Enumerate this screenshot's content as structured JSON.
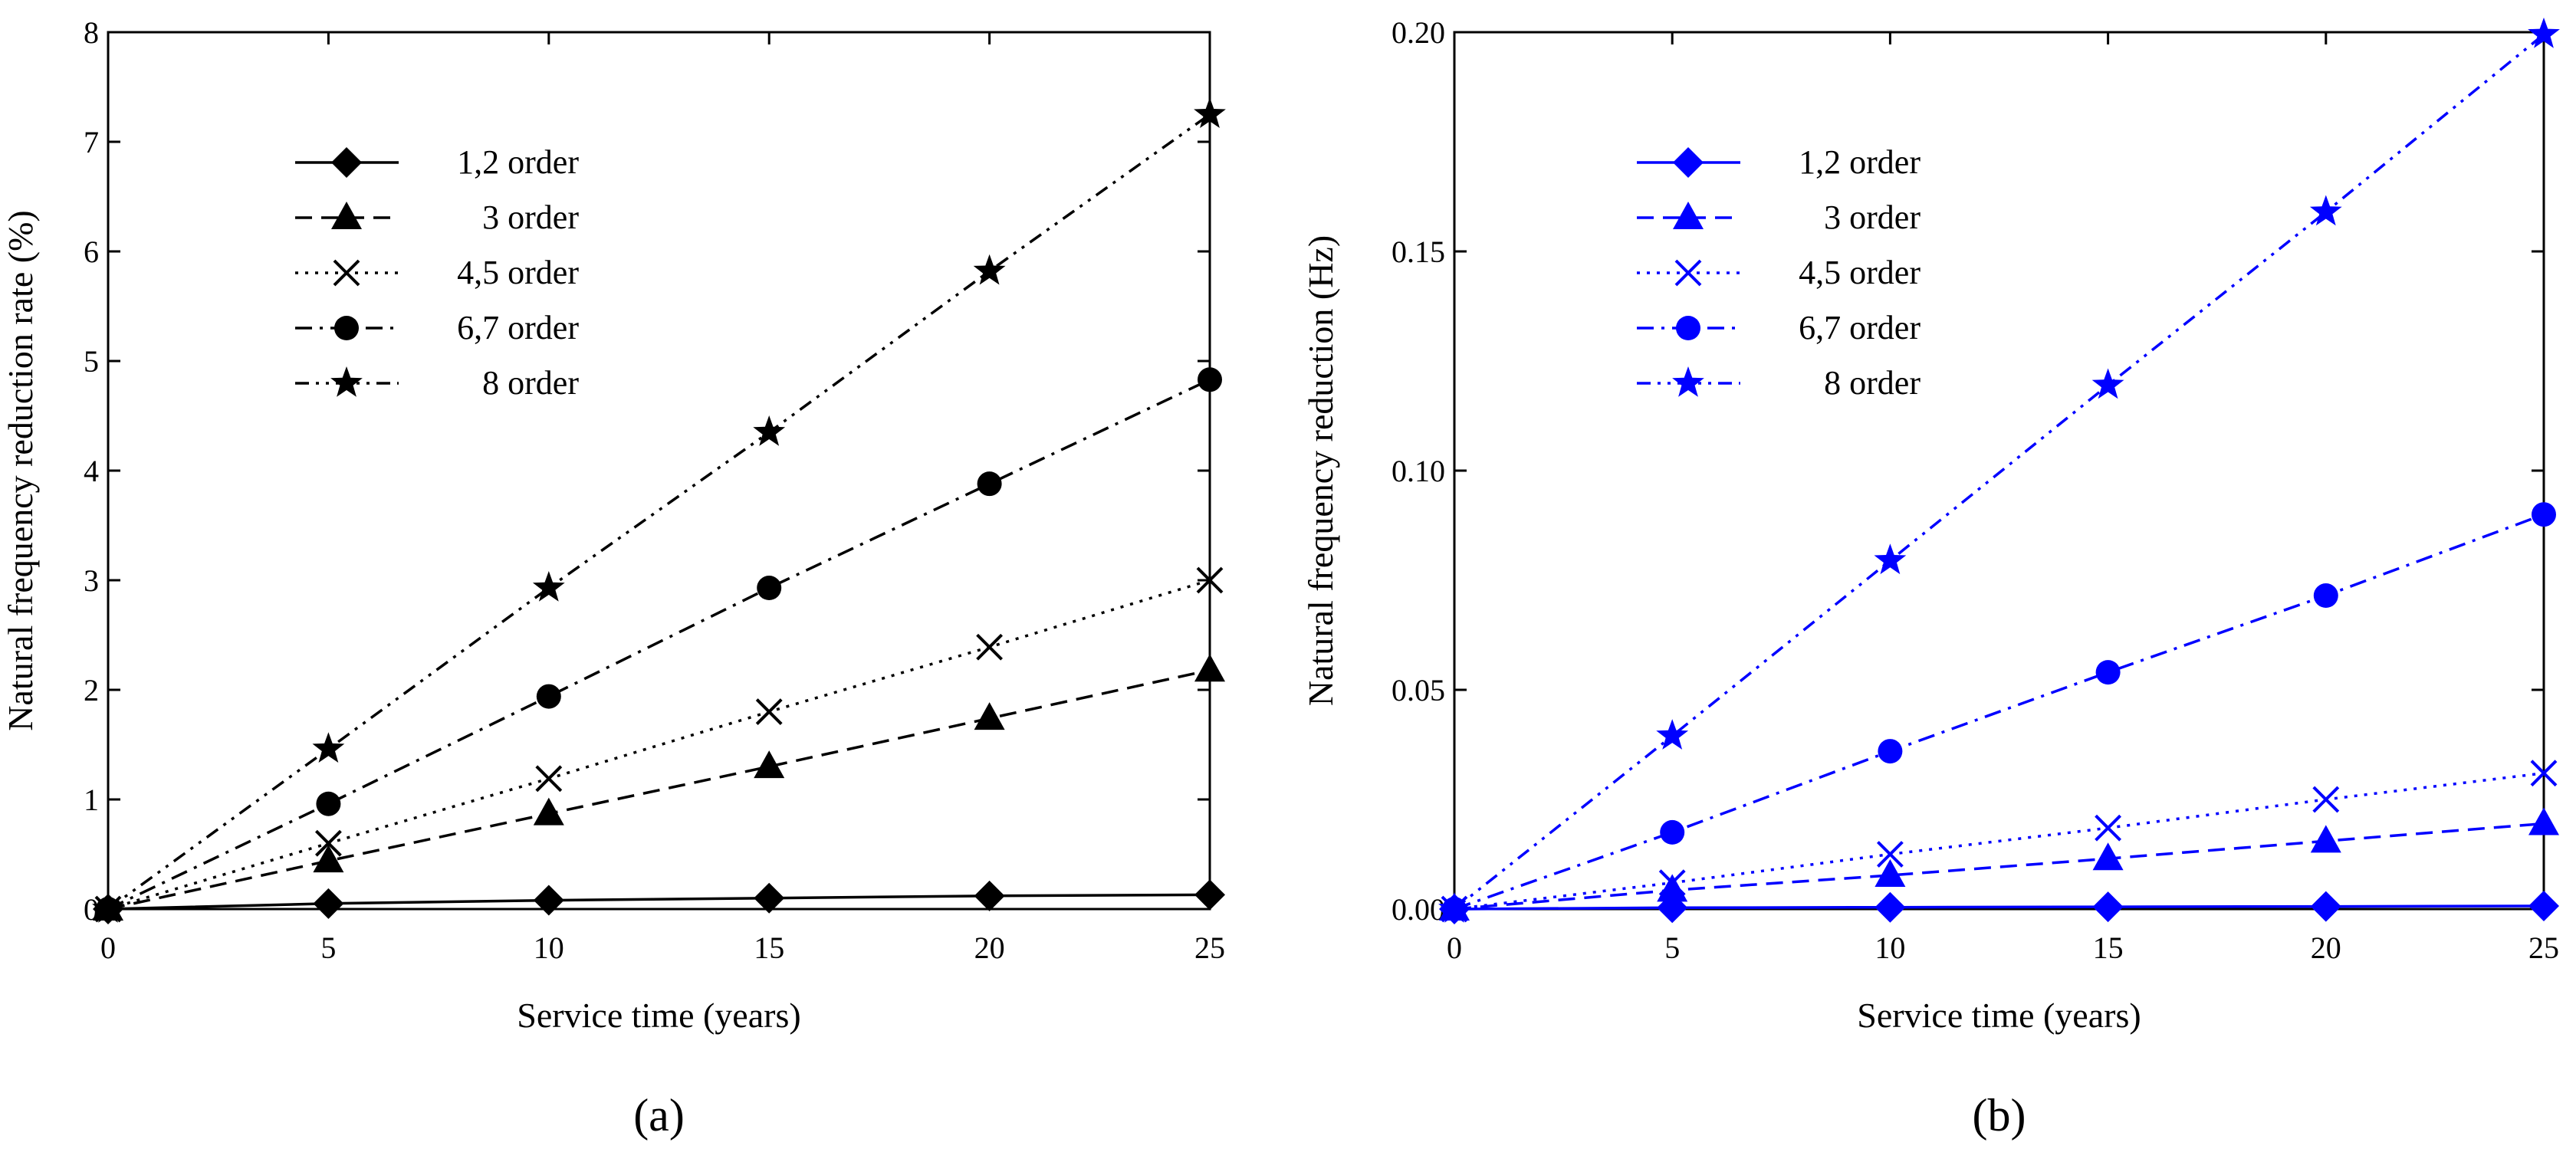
{
  "chart_data": [
    {
      "type": "line",
      "panel_label": "(a)",
      "xlabel": "Service time (years)",
      "ylabel": "Natural frequency reduction rate (%)",
      "color": "#000000",
      "x": [
        0,
        5,
        10,
        15,
        20,
        25
      ],
      "xlim": [
        0,
        25
      ],
      "ylim": [
        0,
        8
      ],
      "xticks": [
        0,
        5,
        10,
        15,
        20,
        25
      ],
      "yticks": [
        0,
        1,
        2,
        3,
        4,
        5,
        6,
        7,
        8
      ],
      "ytick_labels": [
        "0",
        "1",
        "2",
        "3",
        "4",
        "5",
        "6",
        "7",
        "8"
      ],
      "legend_position": "top-left",
      "series": [
        {
          "name": "1,2 order",
          "marker": "diamond",
          "dash": "solid",
          "values": [
            0,
            0.05,
            0.08,
            0.1,
            0.12,
            0.13
          ]
        },
        {
          "name": "3 order",
          "marker": "triangle",
          "dash": "dashed",
          "values": [
            0,
            0.44,
            0.87,
            1.3,
            1.74,
            2.18
          ]
        },
        {
          "name": "4,5 order",
          "marker": "x",
          "dash": "dotted",
          "values": [
            0,
            0.6,
            1.19,
            1.8,
            2.39,
            3.0
          ]
        },
        {
          "name": "6,7 order",
          "marker": "circle",
          "dash": "dashdot",
          "values": [
            0,
            0.96,
            1.94,
            2.93,
            3.88,
            4.83
          ]
        },
        {
          "name": "8 order",
          "marker": "star",
          "dash": "dashdotdot",
          "values": [
            0,
            1.46,
            2.93,
            4.35,
            5.82,
            7.25
          ]
        }
      ]
    },
    {
      "type": "line",
      "panel_label": "(b)",
      "xlabel": "Service time (years)",
      "ylabel": "Natural frequency reduction (Hz)",
      "color": "#0000ff",
      "x": [
        0,
        5,
        10,
        15,
        20,
        25
      ],
      "xlim": [
        0,
        25
      ],
      "ylim": [
        0,
        0.2
      ],
      "xticks": [
        0,
        5,
        10,
        15,
        20,
        25
      ],
      "yticks": [
        0,
        0.05,
        0.1,
        0.15,
        0.2
      ],
      "ytick_labels": [
        "0.00",
        "0.05",
        "0.10",
        "0.15",
        "0.20"
      ],
      "legend_position": "top-left",
      "series": [
        {
          "name": "1,2 order",
          "marker": "diamond",
          "dash": "solid",
          "values": [
            0,
            0.0003,
            0.0004,
            0.0005,
            0.0006,
            0.0007
          ]
        },
        {
          "name": "3 order",
          "marker": "triangle",
          "dash": "dashed",
          "values": [
            0,
            0.0043,
            0.0077,
            0.0115,
            0.0155,
            0.0195
          ]
        },
        {
          "name": "4,5 order",
          "marker": "x",
          "dash": "dotted",
          "values": [
            0,
            0.006,
            0.0125,
            0.0185,
            0.025,
            0.031
          ]
        },
        {
          "name": "6,7 order",
          "marker": "circle",
          "dash": "dashdot",
          "values": [
            0,
            0.0175,
            0.036,
            0.054,
            0.0715,
            0.09
          ]
        },
        {
          "name": "8 order",
          "marker": "star",
          "dash": "dashdotdot",
          "values": [
            0,
            0.0395,
            0.0795,
            0.1195,
            0.159,
            0.1995
          ]
        }
      ]
    }
  ]
}
